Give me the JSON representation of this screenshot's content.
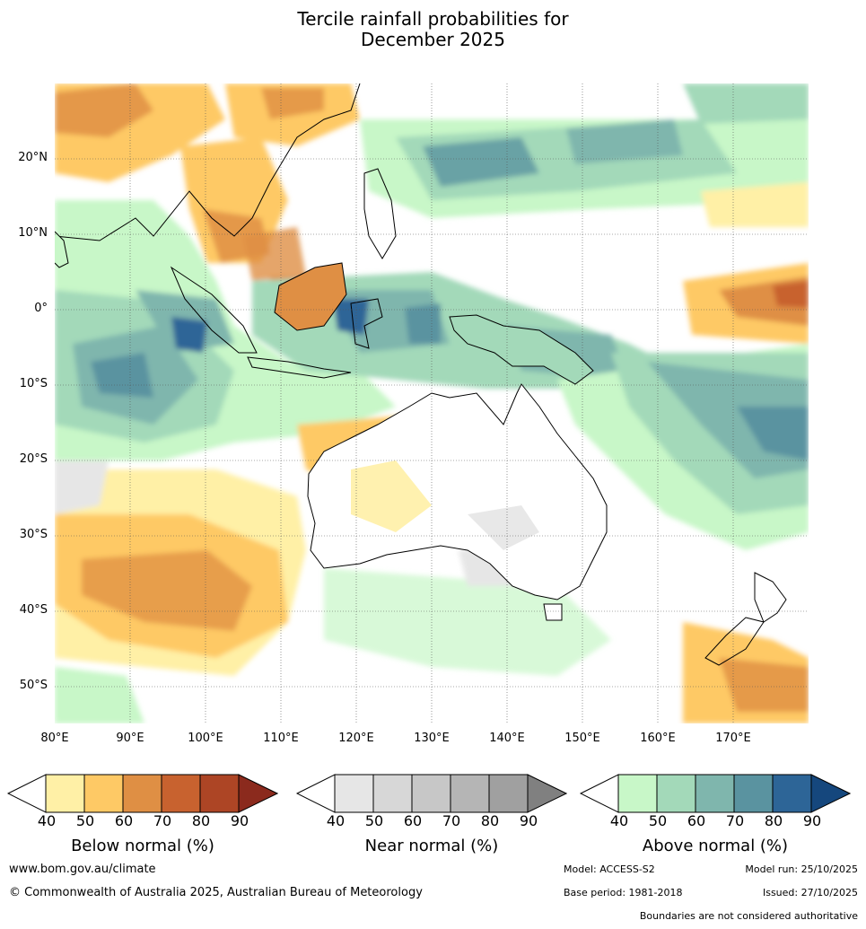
{
  "title": {
    "line1": "Tercile rainfall probabilities for",
    "line2": "December 2025"
  },
  "map": {
    "region": "Australia, Maritime Continent, Indian Ocean and Western Pacific",
    "lat_range": [
      -55,
      30
    ],
    "lon_range": [
      80,
      180
    ],
    "lat_ticks": [
      "20°N",
      "10°N",
      "0°",
      "10°S",
      "20°S",
      "30°S",
      "40°S",
      "50°S"
    ],
    "lon_ticks": [
      "80°E",
      "90°E",
      "100°E",
      "110°E",
      "120°E",
      "130°E",
      "140°E",
      "150°E",
      "160°E",
      "170°E"
    ]
  },
  "legends": [
    {
      "title": "Below normal (%)",
      "ticks": [
        "40",
        "50",
        "60",
        "70",
        "80",
        "90"
      ],
      "colors": [
        "#fff0a6",
        "#fec965",
        "#df8f44",
        "#c8622f",
        "#ad4525",
        "#8b2a1d"
      ]
    },
    {
      "title": "Near normal (%)",
      "ticks": [
        "40",
        "50",
        "60",
        "70",
        "80",
        "90"
      ],
      "colors": [
        "#e6e6e6",
        "#d7d7d7",
        "#c7c7c7",
        "#b5b5b5",
        "#a0a0a0",
        "#808080"
      ]
    },
    {
      "title": "Above normal (%)",
      "ticks": [
        "40",
        "50",
        "60",
        "70",
        "80",
        "90"
      ],
      "colors": [
        "#c8f7c8",
        "#a3d9b9",
        "#7fb6ad",
        "#5a93a0",
        "#2d6597",
        "#15477d"
      ]
    }
  ],
  "footer": {
    "website": "www.bom.gov.au/climate",
    "copyright": "© Commonwealth of Australia 2025, Australian Bureau of Meteorology",
    "model": "Model: ACCESS-S2",
    "model_run": "Model run: 25/10/2025",
    "base_period": "Base period: 1981-2018",
    "issued": "Issued: 27/10/2025",
    "disclaimer": "Boundaries are not considered authoritative"
  }
}
